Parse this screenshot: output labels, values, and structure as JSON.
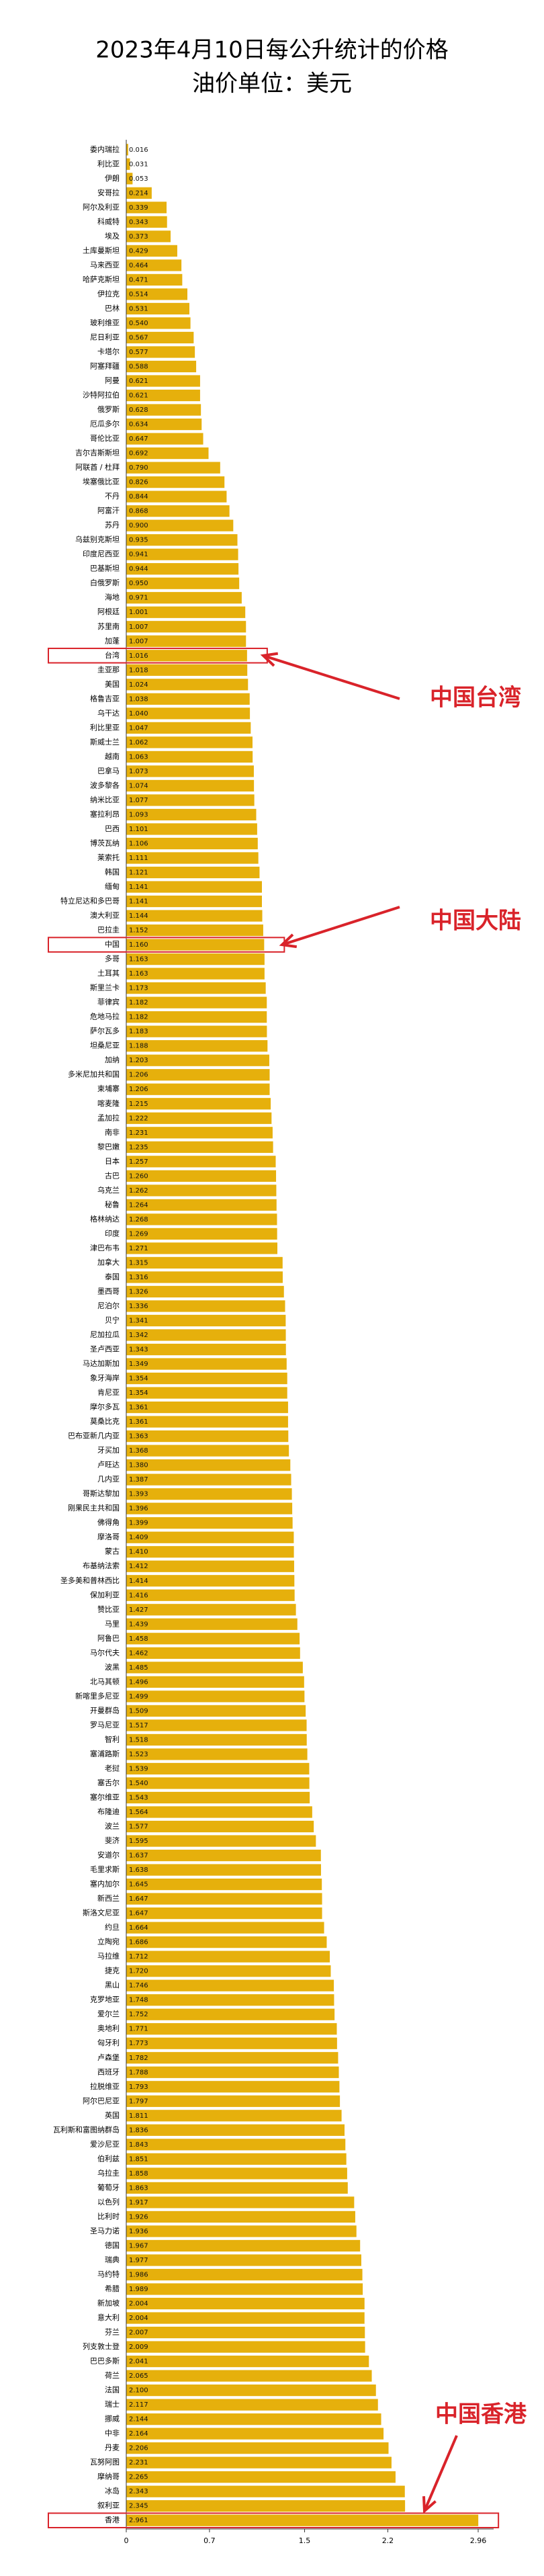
{
  "chart_data": {
    "type": "barh",
    "title": "2023年4月10日每公升统计的价格",
    "subtitle": "油价单位：美元",
    "categories": [
      "委内瑞拉",
      "利比亚",
      "伊朗",
      "安哥拉",
      "阿尔及利亚",
      "科威特",
      "埃及",
      "土库曼斯坦",
      "马来西亚",
      "哈萨克斯坦",
      "伊拉克",
      "巴林",
      "玻利维亚",
      "尼日利亚",
      "卡塔尔",
      "阿塞拜疆",
      "阿曼",
      "沙特阿拉伯",
      "俄罗斯",
      "厄瓜多尔",
      "哥伦比亚",
      "吉尔吉斯斯坦",
      "阿联酋 / 杜拜",
      "埃塞俄比亚",
      "不丹",
      "阿富汗",
      "苏丹",
      "乌兹别克斯坦",
      "印度尼西亚",
      "巴基斯坦",
      "白俄罗斯",
      "海地",
      "阿根廷",
      "苏里南",
      "加蓬",
      "台湾",
      "圭亚那",
      "美国",
      "格鲁吉亚",
      "乌干达",
      "利比里亚",
      "斯威士兰",
      "越南",
      "巴拿马",
      "波多黎各",
      "纳米比亚",
      "塞拉利昂",
      "巴西",
      "博茨瓦纳",
      "莱索托",
      "韩国",
      "缅甸",
      "特立尼达和多巴哥",
      "澳大利亚",
      "巴拉圭",
      "中国",
      "多哥",
      "土耳其",
      "斯里兰卡",
      "菲律宾",
      "危地马拉",
      "萨尔瓦多",
      "坦桑尼亚",
      "加纳",
      "多米尼加共和国",
      "柬埔寨",
      "喀麦隆",
      "孟加拉",
      "南非",
      "黎巴嫩",
      "日本",
      "古巴",
      "乌克兰",
      "秘鲁",
      "格林纳达",
      "印度",
      "津巴布韦",
      "加拿大",
      "泰国",
      "墨西哥",
      "尼泊尔",
      "贝宁",
      "尼加拉瓜",
      "圣卢西亚",
      "马达加斯加",
      "象牙海岸",
      "肯尼亚",
      "摩尔多瓦",
      "莫桑比克",
      "巴布亚新几内亚",
      "牙买加",
      "卢旺达",
      "几内亚",
      "哥斯达黎加",
      "刚果民主共和国",
      "佛得角",
      "摩洛哥",
      "蒙古",
      "布基纳法索",
      "圣多美和普林西比",
      "保加利亚",
      "赞比亚",
      "马里",
      "阿鲁巴",
      "马尔代夫",
      "波黑",
      "北马其顿",
      "新喀里多尼亚",
      "开曼群岛",
      "罗马尼亚",
      "智利",
      "塞浦路斯",
      "老挝",
      "塞舌尔",
      "塞尔维亚",
      "布隆迪",
      "波兰",
      "斐济",
      "安道尔",
      "毛里求斯",
      "塞内加尔",
      "新西兰",
      "斯洛文尼亚",
      "约旦",
      "立陶宛",
      "马拉维",
      "捷克",
      "黑山",
      "克罗地亚",
      "爱尔兰",
      "奥地利",
      "匈牙利",
      "卢森堡",
      "西班牙",
      "拉脱维亚",
      "阿尔巴尼亚",
      "英国",
      "瓦利斯和富图纳群岛",
      "爱沙尼亚",
      "伯利兹",
      "乌拉圭",
      "葡萄牙",
      "以色列",
      "比利时",
      "圣马力诺",
      "德国",
      "瑞典",
      "马约特",
      "希腊",
      "新加坡",
      "意大利",
      "芬兰",
      "列支敦士登",
      "巴巴多斯",
      "荷兰",
      "法国",
      "瑞士",
      "挪威",
      "中非",
      "丹麦",
      "瓦努阿图",
      "摩纳哥",
      "冰岛",
      "叙利亚",
      "香港"
    ],
    "values": [
      0.016,
      0.031,
      0.053,
      0.214,
      0.339,
      0.343,
      0.373,
      0.429,
      0.464,
      0.471,
      0.514,
      0.531,
      0.54,
      0.567,
      0.577,
      0.588,
      0.621,
      0.621,
      0.628,
      0.634,
      0.647,
      0.692,
      0.79,
      0.826,
      0.844,
      0.868,
      0.9,
      0.935,
      0.941,
      0.944,
      0.95,
      0.971,
      1.001,
      1.007,
      1.007,
      1.016,
      1.018,
      1.024,
      1.038,
      1.04,
      1.047,
      1.062,
      1.063,
      1.073,
      1.074,
      1.077,
      1.093,
      1.101,
      1.106,
      1.111,
      1.121,
      1.141,
      1.141,
      1.144,
      1.152,
      1.16,
      1.163,
      1.163,
      1.173,
      1.182,
      1.182,
      1.183,
      1.188,
      1.203,
      1.206,
      1.206,
      1.215,
      1.222,
      1.231,
      1.235,
      1.257,
      1.26,
      1.262,
      1.264,
      1.268,
      1.269,
      1.271,
      1.315,
      1.316,
      1.326,
      1.336,
      1.341,
      1.342,
      1.343,
      1.349,
      1.354,
      1.354,
      1.361,
      1.361,
      1.363,
      1.368,
      1.38,
      1.387,
      1.393,
      1.396,
      1.399,
      1.409,
      1.41,
      1.412,
      1.414,
      1.416,
      1.427,
      1.439,
      1.458,
      1.462,
      1.485,
      1.496,
      1.499,
      1.509,
      1.517,
      1.518,
      1.523,
      1.539,
      1.54,
      1.543,
      1.564,
      1.577,
      1.595,
      1.637,
      1.638,
      1.645,
      1.647,
      1.647,
      1.664,
      1.686,
      1.712,
      1.72,
      1.746,
      1.748,
      1.752,
      1.771,
      1.773,
      1.782,
      1.788,
      1.793,
      1.797,
      1.811,
      1.836,
      1.843,
      1.851,
      1.858,
      1.863,
      1.917,
      1.926,
      1.936,
      1.967,
      1.977,
      1.986,
      1.989,
      2.004,
      2.004,
      2.007,
      2.009,
      2.041,
      2.065,
      2.1,
      2.117,
      2.144,
      2.164,
      2.206,
      2.231,
      2.265,
      2.343,
      2.345,
      2.961
    ],
    "value_labels": [
      "0.016",
      "0.031",
      "0.053",
      "0.214",
      "0.339",
      "0.343",
      "0.373",
      "0.429",
      "0.464",
      "0.471",
      "0.514",
      "0.531",
      "0.540",
      "0.567",
      "0.577",
      "0.588",
      "0.621",
      "0.621",
      "0.628",
      "0.634",
      "0.647",
      "0.692",
      "0.790",
      "0.826",
      "0.844",
      "0.868",
      "0.900",
      "0.935",
      "0.941",
      "0.944",
      "0.950",
      "0.971",
      "1.001",
      "1.007",
      "1.007",
      "1.016",
      "1.018",
      "1.024",
      "1.038",
      "1.040",
      "1.047",
      "1.062",
      "1.063",
      "1.073",
      "1.074",
      "1.077",
      "1.093",
      "1.101",
      "1.106",
      "1.111",
      "1.121",
      "1.141",
      "1.141",
      "1.144",
      "1.152",
      "1.160",
      "1.163",
      "1.163",
      "1.173",
      "1.182",
      "1.182",
      "1.183",
      "1.188",
      "1.203",
      "1.206",
      "1.206",
      "1.215",
      "1.222",
      "1.231",
      "1.235",
      "1.257",
      "1.260",
      "1.262",
      "1.264",
      "1.268",
      "1.269",
      "1.271",
      "1.315",
      "1.316",
      "1.326",
      "1.336",
      "1.341",
      "1.342",
      "1.343",
      "1.349",
      "1.354",
      "1.354",
      "1.361",
      "1.361",
      "1.363",
      "1.368",
      "1.380",
      "1.387",
      "1.393",
      "1.396",
      "1.399",
      "1.409",
      "1.410",
      "1.412",
      "1.414",
      "1.416",
      "1.427",
      "1.439",
      "1.458",
      "1.462",
      "1.485",
      "1.496",
      "1.499",
      "1.509",
      "1.517",
      "1.518",
      "1.523",
      "1.539",
      "1.540",
      "1.543",
      "1.564",
      "1.577",
      "1.595",
      "1.637",
      "1.638",
      "1.645",
      "1.647",
      "1.647",
      "1.664",
      "1.686",
      "1.712",
      "1.720",
      "1.746",
      "1.748",
      "1.752",
      "1.771",
      "1.773",
      "1.782",
      "1.788",
      "1.793",
      "1.797",
      "1.811",
      "1.836",
      "1.843",
      "1.851",
      "1.858",
      "1.863",
      "1.917",
      "1.926",
      "1.936",
      "1.967",
      "1.977",
      "1.986",
      "1.989",
      "2.004",
      "2.004",
      "2.007",
      "2.009",
      "2.041",
      "2.065",
      "2.100",
      "2.117",
      "2.144",
      "2.164",
      "2.206",
      "2.231",
      "2.265",
      "2.343",
      "2.345",
      "2.961"
    ],
    "color": "#e6b00c",
    "xlim": [
      0,
      3.09
    ],
    "xticks": [
      0,
      0.7,
      1.5,
      2.2,
      2.96
    ],
    "annotations": [
      "中国台湾",
      "中国大陆",
      "中国香港"
    ],
    "annotation_color": "#d9232a"
  }
}
